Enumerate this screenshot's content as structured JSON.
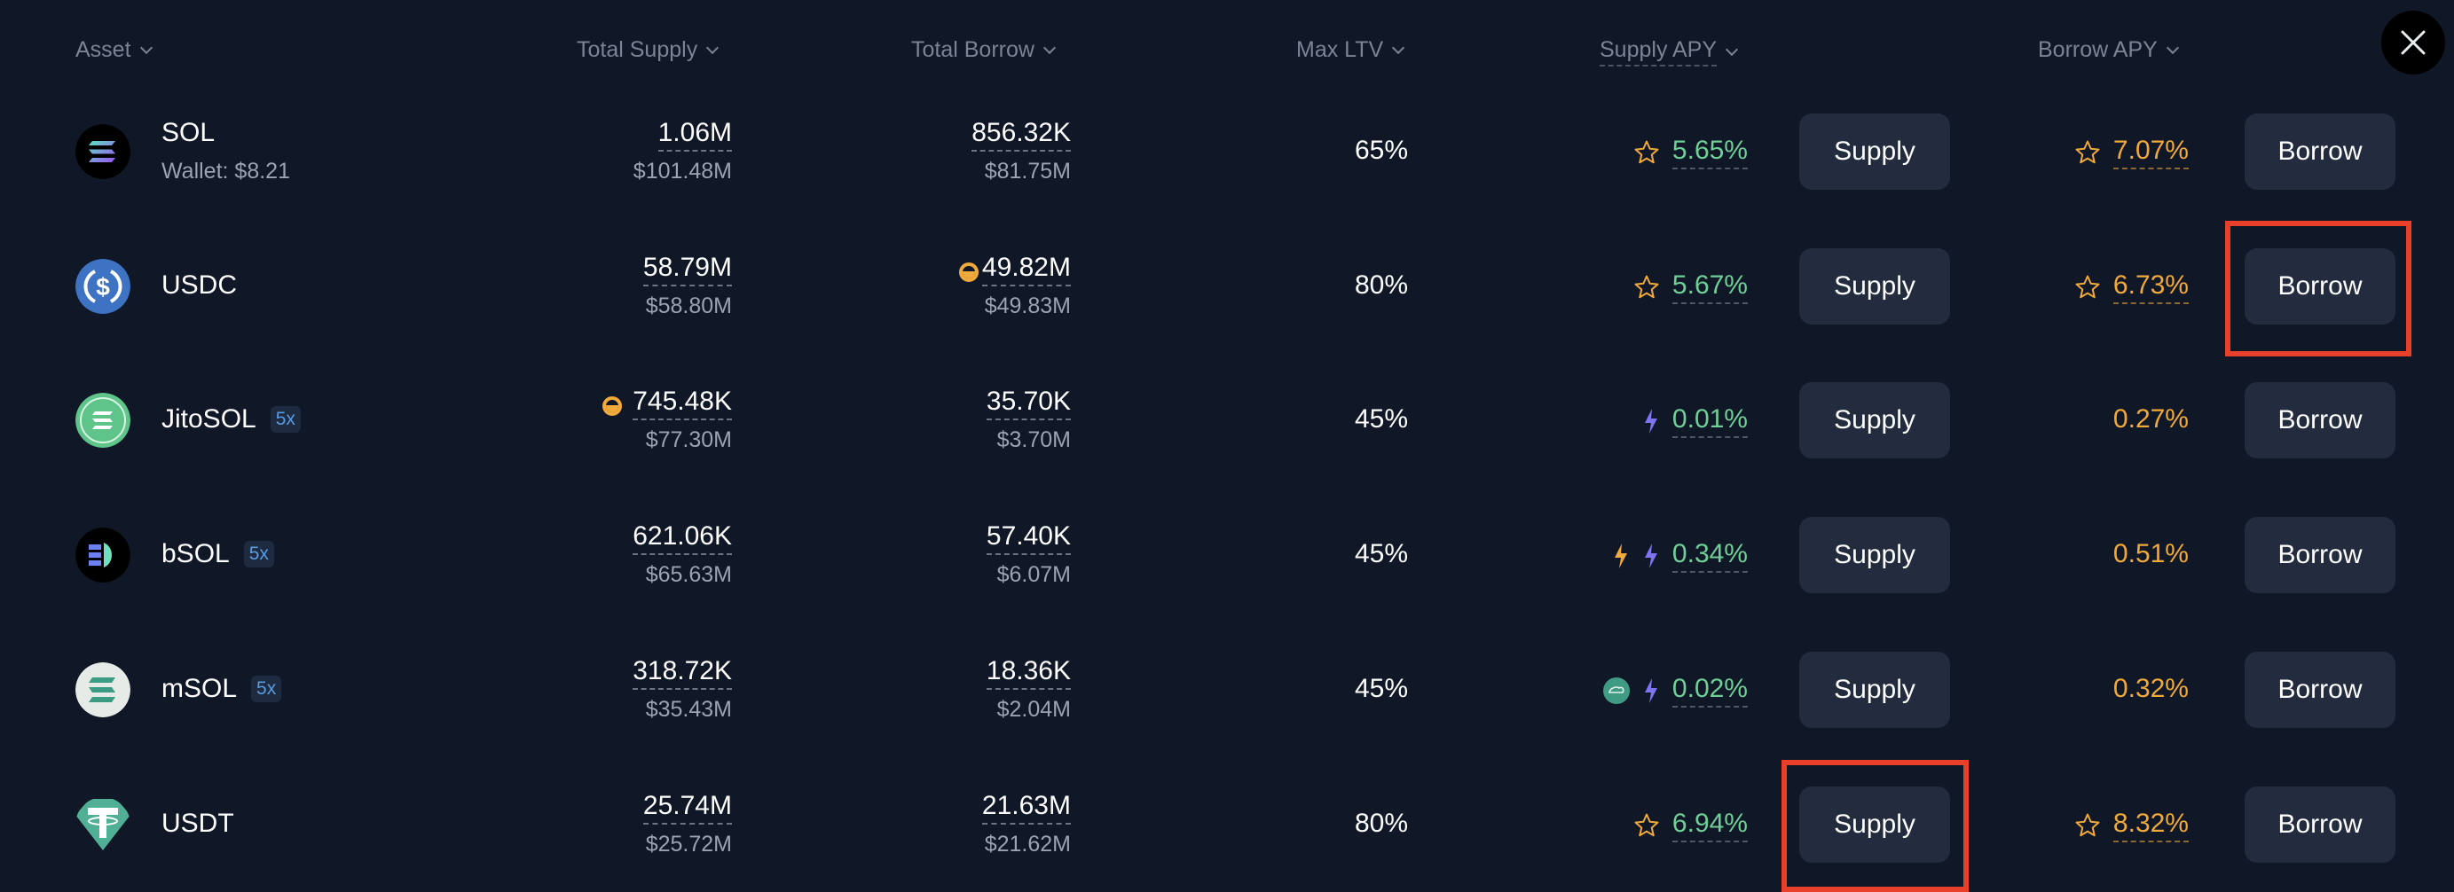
{
  "columns": {
    "asset": "Asset",
    "total_supply": "Total Supply",
    "total_borrow": "Total Borrow",
    "max_ltv": "Max LTV",
    "supply_apy": "Supply APY",
    "borrow_apy": "Borrow APY"
  },
  "close_icon": "close-icon",
  "rows": [
    {
      "asset": "SOL",
      "wallet": "Wallet: $8.21",
      "badge": null,
      "icon": "sol-icon",
      "supply_amount": "1.06M",
      "supply_usd": "$101.48M",
      "supply_cap_icon": false,
      "borrow_amount": "856.32K",
      "borrow_usd": "$81.75M",
      "borrow_cap_icon": false,
      "max_ltv": "65%",
      "supply_apy": "5.65%",
      "supply_apy_icons": [
        "star-icon"
      ],
      "borrow_apy": "7.07%",
      "borrow_apy_icons": [
        "star-icon"
      ],
      "supply_button": "Supply",
      "borrow_button": "Borrow"
    },
    {
      "asset": "USDC",
      "wallet": null,
      "badge": null,
      "icon": "usdc-icon",
      "supply_amount": "58.79M",
      "supply_usd": "$58.80M",
      "supply_cap_icon": false,
      "borrow_amount": "49.82M",
      "borrow_usd": "$49.83M",
      "borrow_cap_icon": true,
      "max_ltv": "80%",
      "supply_apy": "5.67%",
      "supply_apy_icons": [
        "star-icon"
      ],
      "borrow_apy": "6.73%",
      "borrow_apy_icons": [
        "star-icon"
      ],
      "supply_button": "Supply",
      "borrow_button": "Borrow"
    },
    {
      "asset": "JitoSOL",
      "wallet": null,
      "badge": "5x",
      "icon": "jitosol-icon",
      "supply_amount": "745.48K",
      "supply_usd": "$77.30M",
      "supply_cap_icon": true,
      "borrow_amount": "35.70K",
      "borrow_usd": "$3.70M",
      "borrow_cap_icon": false,
      "max_ltv": "45%",
      "supply_apy": "0.01%",
      "supply_apy_icons": [
        "lightning-purple-icon"
      ],
      "borrow_apy": "0.27%",
      "borrow_apy_icons": [],
      "supply_button": "Supply",
      "borrow_button": "Borrow"
    },
    {
      "asset": "bSOL",
      "wallet": null,
      "badge": "5x",
      "icon": "bsol-icon",
      "supply_amount": "621.06K",
      "supply_usd": "$65.63M",
      "supply_cap_icon": false,
      "borrow_amount": "57.40K",
      "borrow_usd": "$6.07M",
      "borrow_cap_icon": false,
      "max_ltv": "45%",
      "supply_apy": "0.34%",
      "supply_apy_icons": [
        "lightning-orange-icon",
        "lightning-purple-icon"
      ],
      "borrow_apy": "0.51%",
      "borrow_apy_icons": [],
      "supply_button": "Supply",
      "borrow_button": "Borrow"
    },
    {
      "asset": "mSOL",
      "wallet": null,
      "badge": "5x",
      "icon": "msol-icon",
      "supply_amount": "318.72K",
      "supply_usd": "$35.43M",
      "supply_cap_icon": false,
      "borrow_amount": "18.36K",
      "borrow_usd": "$2.04M",
      "borrow_cap_icon": false,
      "max_ltv": "45%",
      "supply_apy": "0.02%",
      "supply_apy_icons": [
        "marinade-reward-icon",
        "lightning-purple-icon"
      ],
      "borrow_apy": "0.32%",
      "borrow_apy_icons": [],
      "supply_button": "Supply",
      "borrow_button": "Borrow"
    },
    {
      "asset": "USDT",
      "wallet": null,
      "badge": null,
      "icon": "usdt-icon",
      "supply_amount": "25.74M",
      "supply_usd": "$25.72M",
      "supply_cap_icon": false,
      "borrow_amount": "21.63M",
      "borrow_usd": "$21.62M",
      "borrow_cap_icon": false,
      "max_ltv": "80%",
      "supply_apy": "6.94%",
      "supply_apy_icons": [
        "star-icon"
      ],
      "borrow_apy": "8.32%",
      "borrow_apy_icons": [
        "star-icon"
      ],
      "supply_button": "Supply",
      "borrow_button": "Borrow"
    }
  ],
  "highlights": [
    {
      "target": "USDC Borrow button",
      "color": "#e8402a"
    },
    {
      "target": "USDT Supply button",
      "color": "#e8402a"
    }
  ],
  "colors": {
    "background": "#101727",
    "button_bg": "#222c3e",
    "supply_apy": "#6fcf97",
    "borrow_apy": "#f0a93b",
    "header_text": "#7b8494",
    "secondary_text": "#9aa3b2",
    "highlight": "#e8402a"
  }
}
